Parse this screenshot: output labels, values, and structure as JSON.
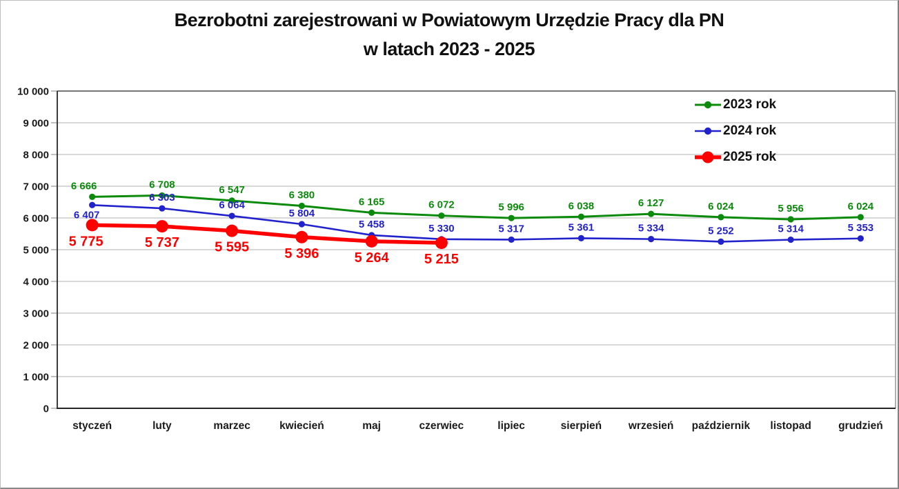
{
  "title": {
    "line1": "Bezrobotni zarejestrowani w Powiatowym Urzędzie Pracy dla PN",
    "line2": "w latach 2023 - 2025"
  },
  "chart_data": {
    "type": "line",
    "title": "Bezrobotni zarejestrowani w Powiatowym Urzędzie Pracy dla PN w latach 2023 - 2025",
    "categories": [
      "styczeń",
      "luty",
      "marzec",
      "kwiecień",
      "maj",
      "czerwiec",
      "lipiec",
      "sierpień",
      "wrzesień",
      "październik",
      "listopad",
      "grudzień"
    ],
    "series": [
      {
        "name": "2023 rok",
        "color": "#0B8A0B",
        "values": [
          6666,
          6708,
          6547,
          6380,
          6165,
          6072,
          5996,
          6038,
          6127,
          6024,
          5956,
          6024
        ],
        "label_position": "above",
        "line_width": 3,
        "marker_radius": 4.6,
        "label_font": 15,
        "label_overrides": {
          "0": {
            "dx": -12,
            "dy": -11
          }
        }
      },
      {
        "name": "2024 rok",
        "color": "#2222CC",
        "values": [
          6407,
          6303,
          6064,
          5804,
          5458,
          5330,
          5317,
          5361,
          5334,
          5252,
          5314,
          5353
        ],
        "label_position": "above",
        "line_width": 2.6,
        "marker_radius": 4.6,
        "label_font": 15,
        "label_overrides": {
          "0": {
            "dx": -8,
            "dy": 19
          }
        }
      },
      {
        "name": "2025 rok",
        "color": "#FE0000",
        "values": [
          5775,
          5737,
          5595,
          5396,
          5264,
          5215
        ],
        "label_position": "below",
        "line_width": 5.5,
        "marker_radius": 9,
        "label_font": 20,
        "label_overrides": {
          "0": {
            "dx": -9,
            "dy": 30
          }
        }
      }
    ],
    "xlabel": "",
    "ylabel": "",
    "ylim": [
      0,
      10000
    ],
    "ytick_step": 1000,
    "y_tick_labels": [
      "0",
      "1 000",
      "2 000",
      "3 000",
      "4 000",
      "5 000",
      "6 000",
      "7 000",
      "8 000",
      "9 000",
      "10 000"
    ],
    "grid": "horizontal",
    "legend_position": "top-right",
    "colors": {
      "axis_text": "#1a1a1a",
      "gridline": "#c0c0c0",
      "plot_top_border": "#757575",
      "plot_right_border": "#9d9d9d",
      "axis_line": "#262626",
      "tick": "#9d9d9d"
    }
  }
}
